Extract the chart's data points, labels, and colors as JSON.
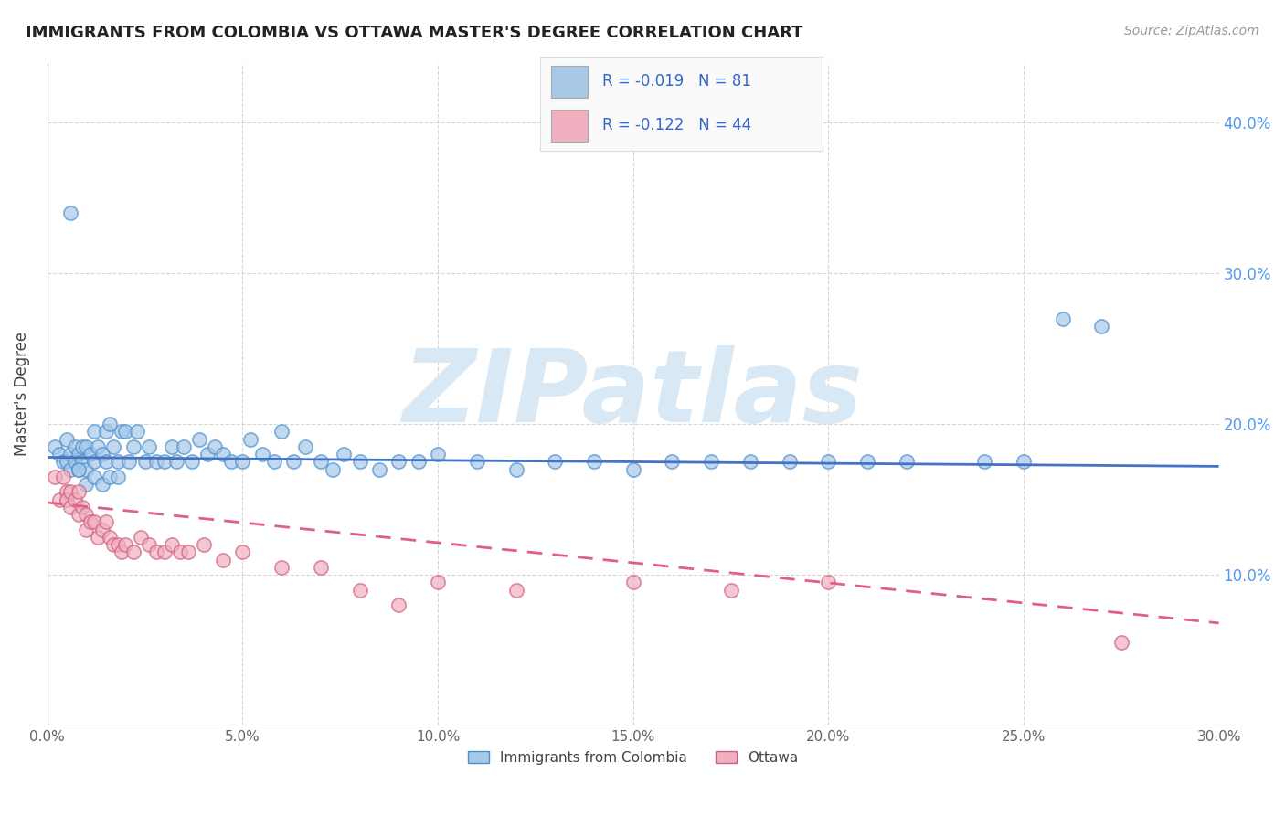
{
  "title": "IMMIGRANTS FROM COLOMBIA VS OTTAWA MASTER'S DEGREE CORRELATION CHART",
  "source_text": "Source: ZipAtlas.com",
  "ylabel": "Master's Degree",
  "xlim": [
    0.0,
    0.3
  ],
  "ylim": [
    0.0,
    0.44
  ],
  "xtick_labels": [
    "0.0%",
    "",
    "5.0%",
    "",
    "10.0%",
    "",
    "15.0%",
    "",
    "20.0%",
    "",
    "25.0%",
    "",
    "30.0%"
  ],
  "xtick_values": [
    0.0,
    0.025,
    0.05,
    0.075,
    0.1,
    0.125,
    0.15,
    0.175,
    0.2,
    0.225,
    0.25,
    0.275,
    0.3
  ],
  "ytick_labels_right": [
    "10.0%",
    "20.0%",
    "30.0%",
    "40.0%"
  ],
  "ytick_values": [
    0.1,
    0.2,
    0.3,
    0.4
  ],
  "blue_color": "#a8c8e8",
  "pink_color": "#f0b0c0",
  "blue_line_color": "#4472c4",
  "pink_line_color": "#e06080",
  "blue_R": -0.019,
  "blue_N": 81,
  "pink_R": -0.122,
  "pink_N": 44,
  "watermark": "ZIPatlas",
  "watermark_color": "#d8e8f5",
  "legend_label_blue": "Immigrants from Colombia",
  "legend_label_pink": "Ottawa",
  "blue_scatter_x": [
    0.002,
    0.003,
    0.004,
    0.005,
    0.005,
    0.006,
    0.006,
    0.007,
    0.007,
    0.008,
    0.008,
    0.009,
    0.009,
    0.01,
    0.01,
    0.011,
    0.012,
    0.012,
    0.013,
    0.014,
    0.015,
    0.015,
    0.016,
    0.017,
    0.018,
    0.019,
    0.02,
    0.021,
    0.022,
    0.023,
    0.025,
    0.026,
    0.028,
    0.03,
    0.032,
    0.033,
    0.035,
    0.037,
    0.039,
    0.041,
    0.043,
    0.045,
    0.047,
    0.05,
    0.052,
    0.055,
    0.058,
    0.06,
    0.063,
    0.066,
    0.07,
    0.073,
    0.076,
    0.08,
    0.085,
    0.09,
    0.095,
    0.1,
    0.11,
    0.12,
    0.13,
    0.14,
    0.15,
    0.16,
    0.17,
    0.18,
    0.19,
    0.2,
    0.21,
    0.22,
    0.24,
    0.25,
    0.26,
    0.27,
    0.006,
    0.008,
    0.01,
    0.012,
    0.014,
    0.016,
    0.018
  ],
  "blue_scatter_y": [
    0.185,
    0.18,
    0.175,
    0.19,
    0.175,
    0.18,
    0.17,
    0.185,
    0.175,
    0.18,
    0.17,
    0.185,
    0.175,
    0.185,
    0.17,
    0.18,
    0.195,
    0.175,
    0.185,
    0.18,
    0.195,
    0.175,
    0.2,
    0.185,
    0.175,
    0.195,
    0.195,
    0.175,
    0.185,
    0.195,
    0.175,
    0.185,
    0.175,
    0.175,
    0.185,
    0.175,
    0.185,
    0.175,
    0.19,
    0.18,
    0.185,
    0.18,
    0.175,
    0.175,
    0.19,
    0.18,
    0.175,
    0.195,
    0.175,
    0.185,
    0.175,
    0.17,
    0.18,
    0.175,
    0.17,
    0.175,
    0.175,
    0.18,
    0.175,
    0.17,
    0.175,
    0.175,
    0.17,
    0.175,
    0.175,
    0.175,
    0.175,
    0.175,
    0.175,
    0.175,
    0.175,
    0.175,
    0.27,
    0.265,
    0.34,
    0.17,
    0.16,
    0.165,
    0.16,
    0.165,
    0.165
  ],
  "pink_scatter_x": [
    0.002,
    0.003,
    0.004,
    0.005,
    0.005,
    0.006,
    0.006,
    0.007,
    0.008,
    0.008,
    0.009,
    0.01,
    0.01,
    0.011,
    0.012,
    0.013,
    0.014,
    0.015,
    0.016,
    0.017,
    0.018,
    0.019,
    0.02,
    0.022,
    0.024,
    0.026,
    0.028,
    0.03,
    0.032,
    0.034,
    0.036,
    0.04,
    0.045,
    0.05,
    0.06,
    0.07,
    0.08,
    0.09,
    0.1,
    0.12,
    0.15,
    0.175,
    0.2,
    0.275
  ],
  "pink_scatter_y": [
    0.165,
    0.15,
    0.165,
    0.155,
    0.15,
    0.155,
    0.145,
    0.15,
    0.155,
    0.14,
    0.145,
    0.14,
    0.13,
    0.135,
    0.135,
    0.125,
    0.13,
    0.135,
    0.125,
    0.12,
    0.12,
    0.115,
    0.12,
    0.115,
    0.125,
    0.12,
    0.115,
    0.115,
    0.12,
    0.115,
    0.115,
    0.12,
    0.11,
    0.115,
    0.105,
    0.105,
    0.09,
    0.08,
    0.095,
    0.09,
    0.095,
    0.09,
    0.095,
    0.055
  ],
  "blue_line_x": [
    0.0,
    0.3
  ],
  "blue_line_y": [
    0.178,
    0.172
  ],
  "pink_line_x": [
    0.0,
    0.3
  ],
  "pink_line_y": [
    0.148,
    0.068
  ]
}
